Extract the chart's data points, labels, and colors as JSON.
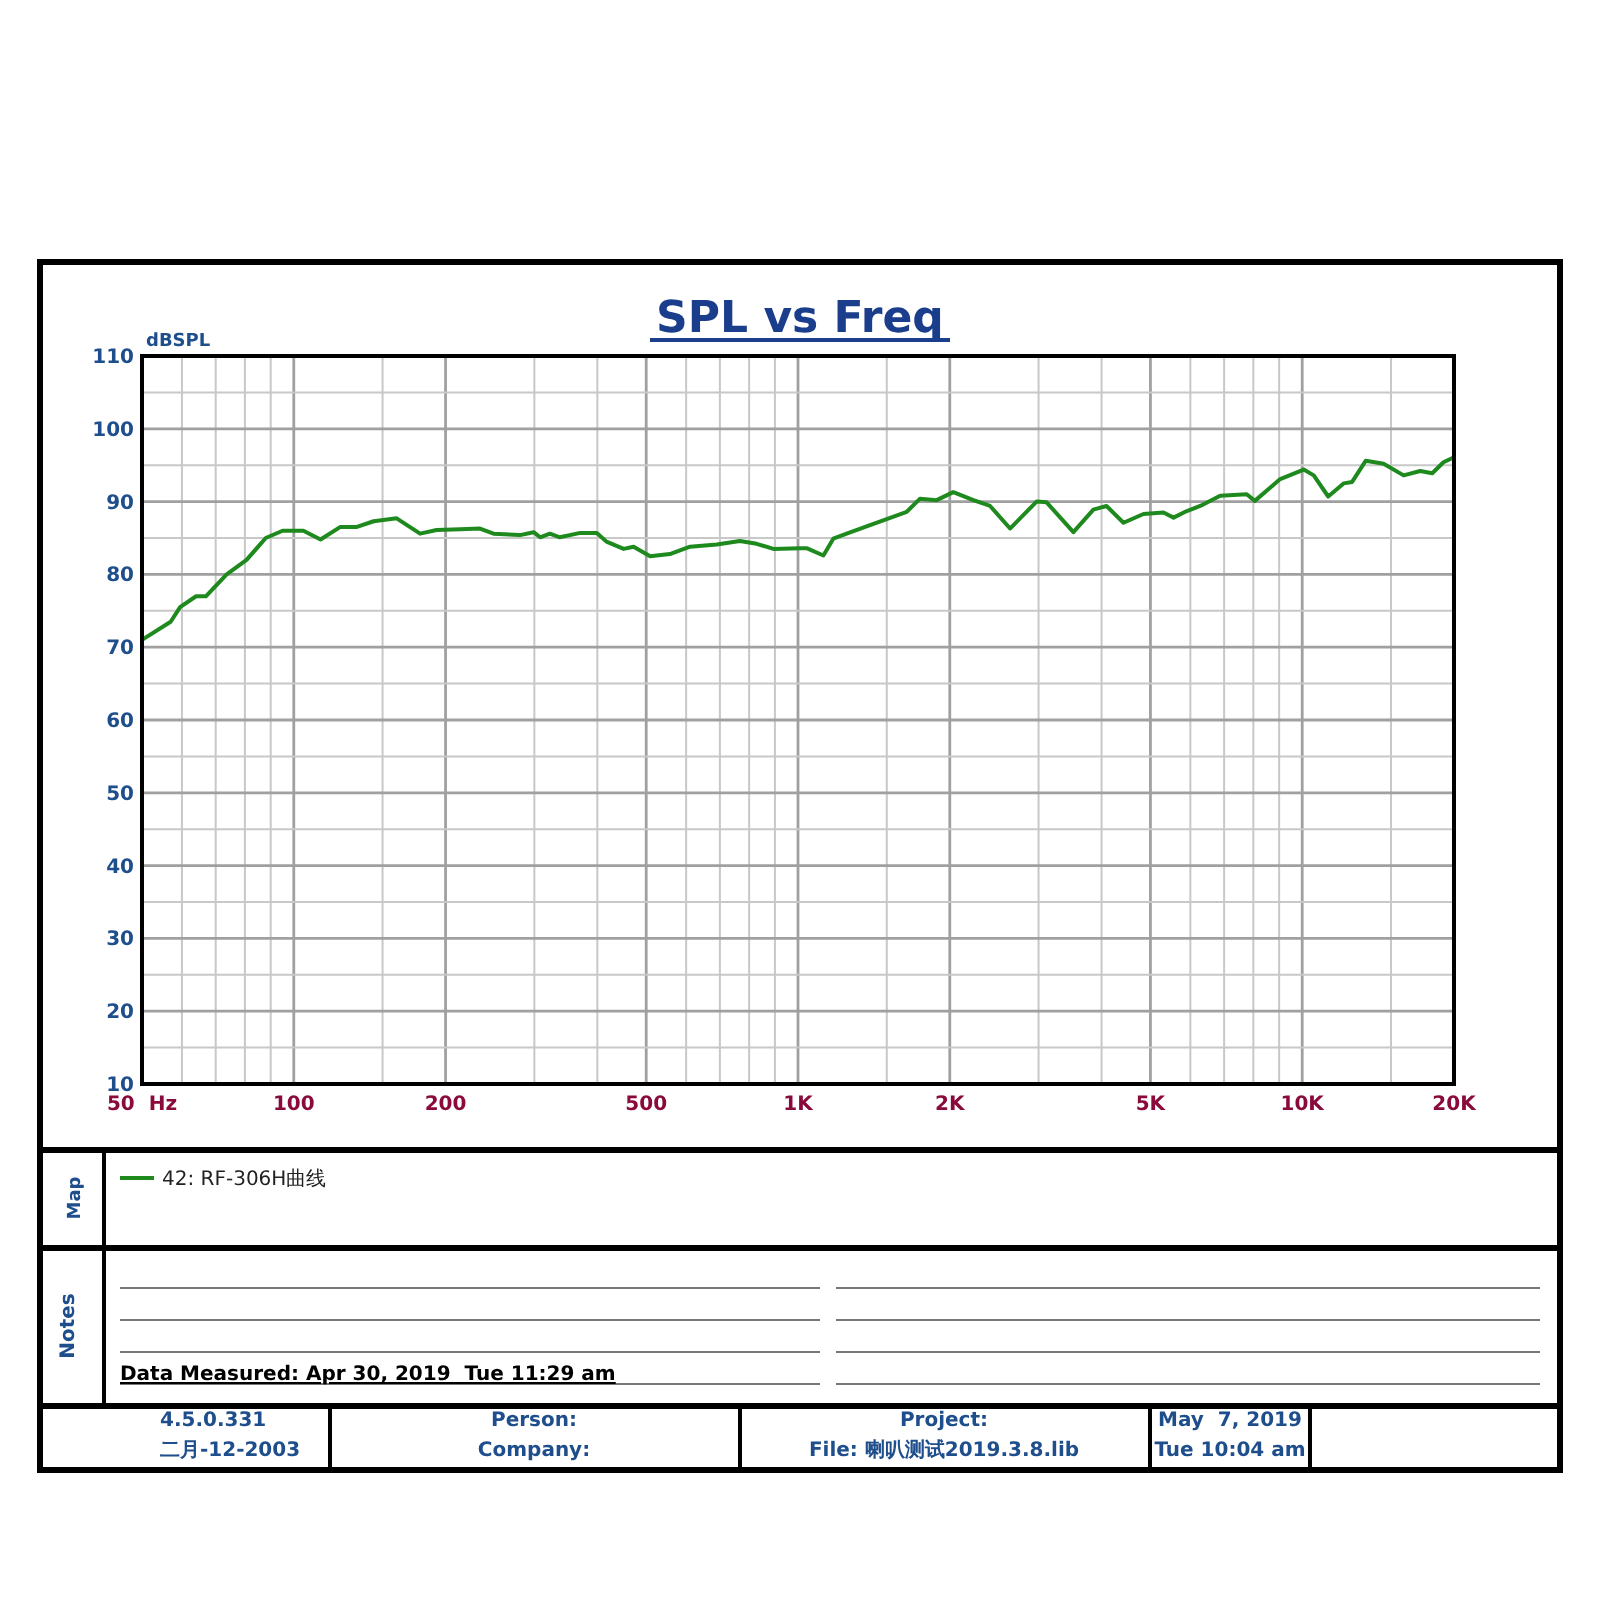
{
  "chart_data": {
    "type": "line",
    "title": "SPL vs Freq",
    "ylabel": "dBSPL",
    "legend_title": "Map",
    "legend": "bottom",
    "log": "x",
    "grid": true,
    "xlim": [
      50,
      20000
    ],
    "ylim": [
      10,
      110
    ],
    "xticks": [
      {
        "value": 50,
        "label": "50  Hz"
      },
      {
        "value": 60,
        "label": null
      },
      {
        "value": 70,
        "label": null
      },
      {
        "value": 80,
        "label": null
      },
      {
        "value": 90,
        "label": null
      },
      100,
      {
        "value": 150,
        "label": null
      },
      200,
      {
        "value": 300,
        "label": null
      },
      {
        "value": 400,
        "label": null
      },
      500,
      {
        "value": 600,
        "label": null
      },
      {
        "value": 700,
        "label": null
      },
      {
        "value": 800,
        "label": null
      },
      {
        "value": 900,
        "label": null
      },
      {
        "value": 1000,
        "label": "1K"
      },
      {
        "value": 1500,
        "label": null
      },
      {
        "value": 2000,
        "label": "2K"
      },
      {
        "value": 3000,
        "label": null
      },
      {
        "value": 4000,
        "label": null
      },
      {
        "value": 5000,
        "label": "5K"
      },
      {
        "value": 6000,
        "label": null
      },
      {
        "value": 7000,
        "label": null
      },
      {
        "value": 8000,
        "label": null
      },
      {
        "value": 9000,
        "label": null
      },
      {
        "value": 10000,
        "label": "10K"
      },
      {
        "value": 15000,
        "label": null
      },
      {
        "value": 20000,
        "label": "20K"
      }
    ],
    "yticks": [
      10,
      {
        "value": 15,
        "label": null
      },
      20,
      {
        "value": 25,
        "label": null
      },
      30,
      {
        "value": 35,
        "label": null
      },
      40,
      {
        "value": 45,
        "label": null
      },
      50,
      {
        "value": 55,
        "label": null
      },
      60,
      {
        "value": 65,
        "label": null
      },
      70,
      {
        "value": 75,
        "label": null
      },
      80,
      {
        "value": 85,
        "label": null
      },
      90,
      {
        "value": 95,
        "label": null
      },
      100,
      {
        "value": 105,
        "label": null
      },
      110
    ],
    "series": [
      {
        "name": "42: RF-306H曲线",
        "color": "#1e8a1e",
        "x": [
          50,
          57,
          59.5,
          64,
          67,
          73.6,
          80.6,
          88,
          95,
          104.5,
          113,
          123.5,
          133,
          144,
          160,
          178,
          192,
          214,
          234,
          249,
          281,
          299,
          308,
          322,
          337,
          370,
          399,
          417,
          451,
          472,
          509,
          557,
          611,
          690,
          767,
          828,
          894,
          1009,
          1040,
          1123,
          1175,
          1249,
          1368,
          1643,
          1746,
          1884,
          2032,
          2228,
          2404,
          2634,
          2973,
          3112,
          3517,
          3853,
          4091,
          4421,
          4844,
          5307,
          5557,
          5904,
          6277,
          6875,
          7762,
          8053,
          9043,
          10070,
          10540,
          11260,
          12080,
          12560,
          13360,
          14500,
          15890,
          17140,
          18110,
          19060,
          20000
        ],
        "values": [
          71,
          73.5,
          75.5,
          77,
          77,
          80,
          82,
          85,
          86,
          86,
          84.8,
          86.5,
          86.5,
          87.3,
          87.7,
          85.6,
          86.1,
          86.2,
          86.3,
          85.6,
          85.4,
          85.8,
          85.1,
          85.6,
          85.1,
          85.7,
          85.7,
          84.5,
          83.5,
          83.8,
          82.5,
          82.8,
          83.8,
          84.1,
          84.6,
          84.2,
          83.5,
          83.6,
          83.6,
          82.6,
          84.9,
          85.6,
          86.6,
          88.6,
          90.4,
          90.2,
          91.3,
          90.2,
          89.4,
          86.3,
          90,
          89.9,
          85.8,
          88.9,
          89.4,
          87.1,
          88.3,
          88.5,
          87.8,
          88.7,
          89.4,
          90.8,
          91,
          90.1,
          93.1,
          94.4,
          93.6,
          90.7,
          92.5,
          92.7,
          95.6,
          95.2,
          93.6,
          94.2,
          93.9,
          95.4,
          96.1
        ]
      }
    ],
    "annotations": [
      "Notes",
      "Data Measured: Apr 30, 2019  Tue 11:29 am",
      "4.5.0.331",
      "二月-12-2003",
      "Person:",
      "Company:",
      "Project:",
      "File: 喇叭测试2019.3.8.lib",
      "May  7, 2019",
      "Tue 10:04 am"
    ]
  }
}
